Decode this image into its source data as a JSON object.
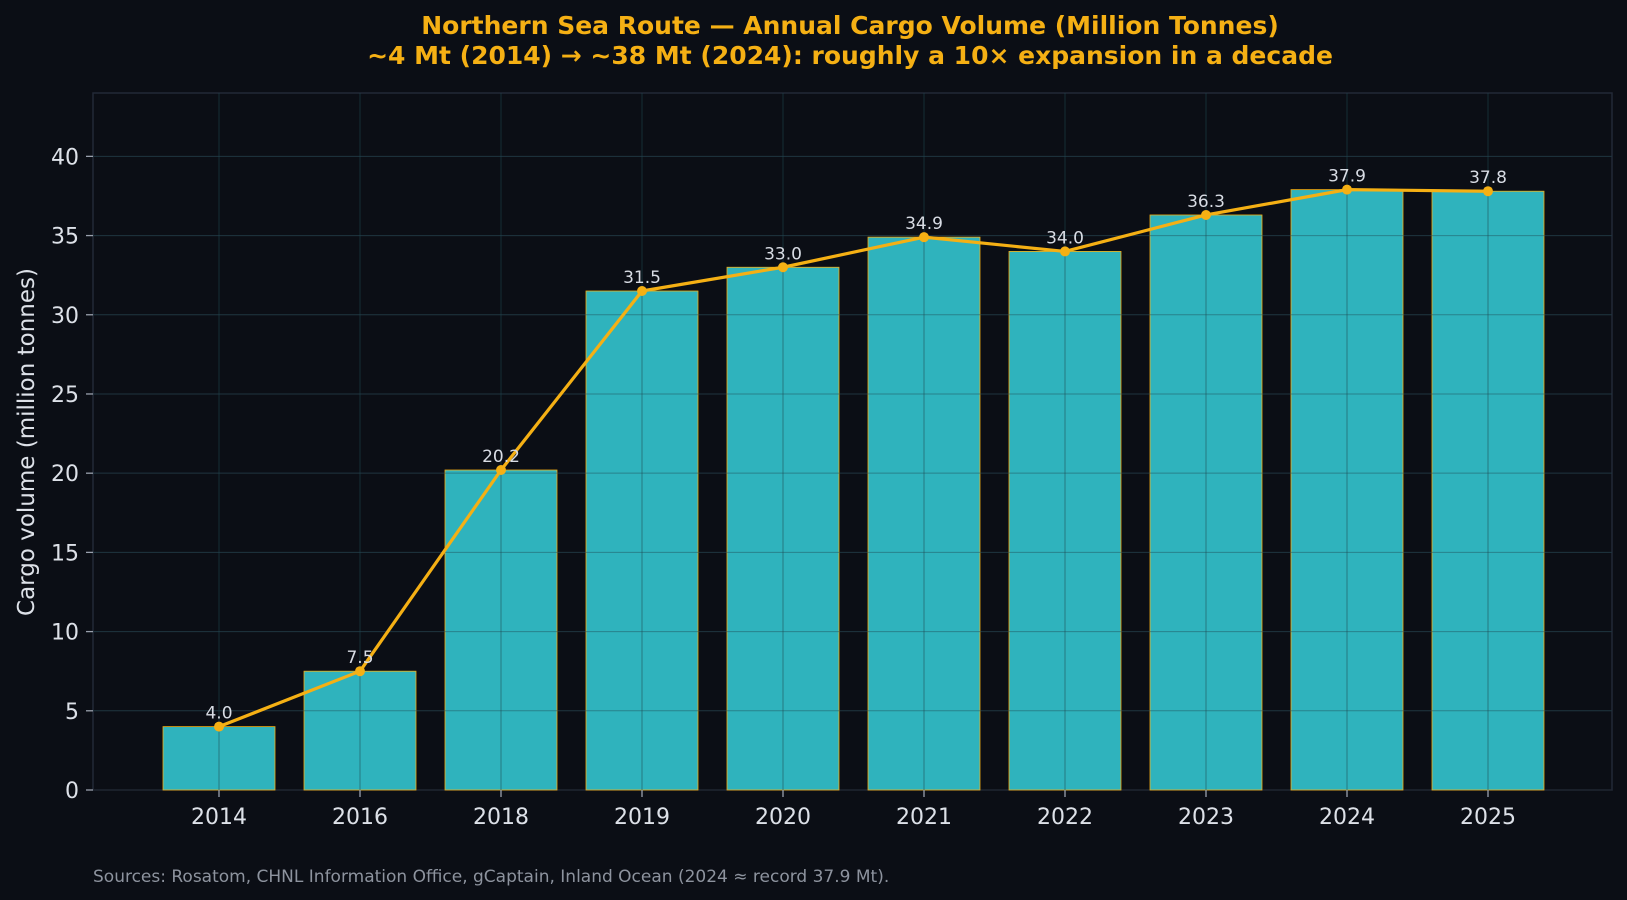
{
  "chart_data": {
    "type": "bar",
    "title": "Northern Sea Route — Annual Cargo Volume (Million Tonnes)",
    "subtitle": "~4 Mt (2014) → ~38 Mt (2024): roughly a 10× expansion in a decade",
    "xlabel": "",
    "ylabel": "Cargo volume (million tonnes)",
    "categories": [
      "2014",
      "2016",
      "2018",
      "2019",
      "2020",
      "2021",
      "2022",
      "2023",
      "2024",
      "2025"
    ],
    "series": [
      {
        "type": "bar",
        "values": [
          4.0,
          7.5,
          20.2,
          31.5,
          33.0,
          34.9,
          34.0,
          36.3,
          37.9,
          37.8
        ],
        "data_labels": [
          "4.0",
          "7.5",
          "20.2",
          "31.5",
          "33.0",
          "34.9",
          "34.0",
          "36.3",
          "37.9",
          "37.8"
        ],
        "color": "#2fb3bd",
        "edge_color": "#f5b014"
      },
      {
        "type": "line",
        "values": [
          4.0,
          7.5,
          20.2,
          31.5,
          33.0,
          34.9,
          34.0,
          36.3,
          37.9,
          37.8
        ],
        "color": "#f5b014",
        "markers": true
      }
    ],
    "ylim": [
      0,
      44
    ],
    "yticks": [
      0,
      5,
      10,
      15,
      20,
      25,
      30,
      35,
      40
    ],
    "grid": true,
    "legend": "none",
    "source_note": "Sources: Rosatom, CHNL Information Office, gCaptain, Inland Ocean (2024 ≈ record 37.9 Mt).",
    "colors": {
      "background": "#0b0e15",
      "bar": "#2fb3bd",
      "line": "#f5b014",
      "title": "#f5b014",
      "text": "#dde1e8",
      "grid": "#1f2530"
    }
  }
}
